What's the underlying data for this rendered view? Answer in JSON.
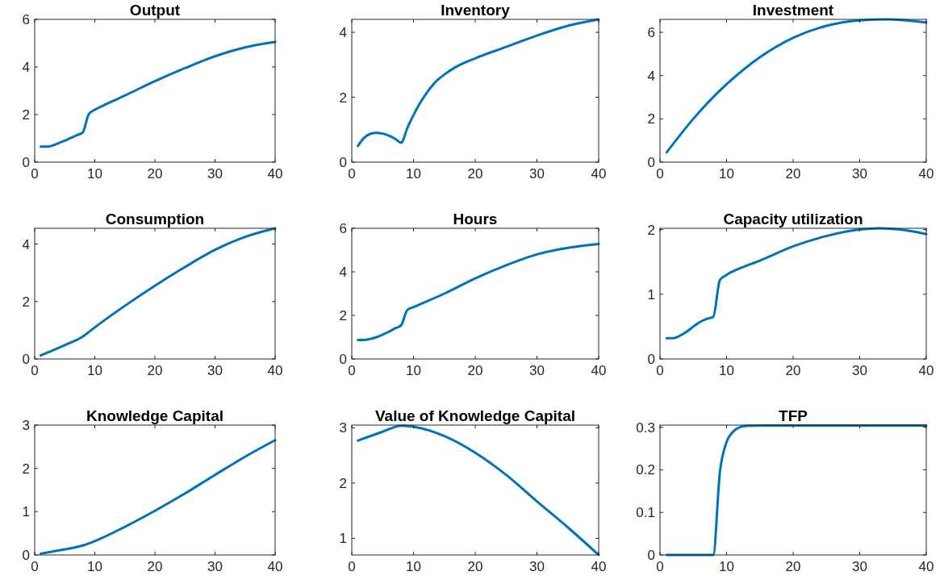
{
  "chart_data": [
    {
      "type": "line",
      "title": "Output",
      "x": [
        1,
        2,
        3,
        4,
        5,
        6,
        7,
        8,
        9,
        10,
        12,
        15,
        20,
        25,
        30,
        35,
        40
      ],
      "series": [
        {
          "color": "#0072bd",
          "values": [
            0.65,
            0.65,
            0.7,
            0.8,
            0.9,
            1.02,
            1.13,
            1.25,
            2.02,
            2.2,
            2.45,
            2.8,
            3.4,
            3.95,
            4.45,
            4.82,
            5.05
          ]
        }
      ],
      "xlim": [
        0,
        40
      ],
      "xticks": [
        0,
        10,
        20,
        30,
        40
      ],
      "ylim": [
        0,
        6
      ],
      "yticks": [
        0,
        2,
        4,
        6
      ]
    },
    {
      "type": "line",
      "title": "Inventory",
      "x": [
        1,
        2,
        3,
        4,
        5,
        6,
        7,
        8,
        9,
        10,
        11,
        12,
        13,
        14,
        15,
        17,
        20,
        25,
        30,
        35,
        40
      ],
      "series": [
        {
          "color": "#0072bd",
          "values": [
            0.5,
            0.75,
            0.87,
            0.9,
            0.88,
            0.82,
            0.72,
            0.6,
            1.05,
            1.45,
            1.8,
            2.1,
            2.35,
            2.55,
            2.7,
            2.95,
            3.2,
            3.55,
            3.9,
            4.2,
            4.4
          ]
        }
      ],
      "xlim": [
        0,
        40
      ],
      "xticks": [
        0,
        10,
        20,
        30,
        40
      ],
      "ylim": [
        0,
        4.4
      ],
      "yticks": [
        0,
        2,
        4
      ]
    },
    {
      "type": "line",
      "title": "Investment",
      "x": [
        1,
        5,
        10,
        15,
        20,
        25,
        30,
        34,
        37,
        40
      ],
      "series": [
        {
          "color": "#0072bd",
          "values": [
            0.45,
            2.0,
            3.6,
            4.85,
            5.75,
            6.3,
            6.55,
            6.6,
            6.55,
            6.45
          ]
        }
      ],
      "xlim": [
        0,
        40
      ],
      "xticks": [
        0,
        10,
        20,
        30,
        40
      ],
      "ylim": [
        0,
        6.6
      ],
      "yticks": [
        0,
        2,
        4,
        6
      ]
    },
    {
      "type": "line",
      "title": "Consumption",
      "x": [
        1,
        5,
        8,
        10,
        15,
        20,
        25,
        30,
        35,
        40
      ],
      "series": [
        {
          "color": "#0072bd",
          "values": [
            0.12,
            0.48,
            0.78,
            1.1,
            1.85,
            2.55,
            3.2,
            3.8,
            4.25,
            4.55
          ]
        }
      ],
      "xlim": [
        0,
        40
      ],
      "xticks": [
        0,
        10,
        20,
        30,
        40
      ],
      "ylim": [
        0,
        4.55
      ],
      "yticks": [
        0,
        2,
        4
      ]
    },
    {
      "type": "line",
      "title": "Hours",
      "x": [
        1,
        2,
        3,
        4,
        5,
        6,
        7,
        8,
        9,
        10,
        15,
        20,
        25,
        30,
        35,
        40
      ],
      "series": [
        {
          "color": "#0072bd",
          "values": [
            0.87,
            0.87,
            0.92,
            1.0,
            1.12,
            1.25,
            1.4,
            1.55,
            2.25,
            2.38,
            3.0,
            3.7,
            4.3,
            4.8,
            5.1,
            5.28
          ]
        }
      ],
      "xlim": [
        0,
        40
      ],
      "xticks": [
        0,
        10,
        20,
        30,
        40
      ],
      "ylim": [
        0,
        6
      ],
      "yticks": [
        0,
        2,
        4,
        6
      ]
    },
    {
      "type": "line",
      "title": "Capacity utilization",
      "x": [
        1,
        2,
        3,
        4,
        5,
        6,
        7,
        8,
        9,
        10,
        12,
        15,
        20,
        25,
        30,
        33,
        36,
        40
      ],
      "series": [
        {
          "color": "#0072bd",
          "values": [
            0.32,
            0.32,
            0.36,
            0.42,
            0.5,
            0.57,
            0.62,
            0.65,
            1.22,
            1.3,
            1.4,
            1.52,
            1.74,
            1.9,
            2.0,
            2.02,
            2.0,
            1.93
          ]
        }
      ],
      "xlim": [
        0,
        40
      ],
      "xticks": [
        0,
        10,
        20,
        30,
        40
      ],
      "ylim": [
        0,
        2.02
      ],
      "yticks": [
        0,
        1,
        2
      ]
    },
    {
      "type": "line",
      "title": "Knowledge Capital",
      "x": [
        1,
        5,
        8,
        10,
        15,
        20,
        25,
        30,
        35,
        40
      ],
      "series": [
        {
          "color": "#0072bd",
          "values": [
            0.03,
            0.13,
            0.22,
            0.32,
            0.65,
            1.02,
            1.42,
            1.85,
            2.27,
            2.65
          ]
        }
      ],
      "xlim": [
        0,
        40
      ],
      "xticks": [
        0,
        10,
        20,
        30,
        40
      ],
      "ylim": [
        0,
        3
      ],
      "yticks": [
        0,
        1,
        2,
        3
      ]
    },
    {
      "type": "line",
      "title": "Value of Knowledge Capital",
      "x": [
        1,
        5,
        8,
        10,
        15,
        20,
        25,
        30,
        35,
        40
      ],
      "series": [
        {
          "color": "#0072bd",
          "values": [
            2.77,
            2.93,
            3.04,
            3.02,
            2.85,
            2.55,
            2.15,
            1.67,
            1.2,
            0.7
          ]
        }
      ],
      "xlim": [
        0,
        40
      ],
      "xticks": [
        0,
        10,
        20,
        30,
        40
      ],
      "ylim": [
        0.7,
        3.05
      ],
      "yticks": [
        1,
        2,
        3
      ]
    },
    {
      "type": "line",
      "title": "TFP",
      "x": [
        1,
        2,
        3,
        4,
        5,
        6,
        7,
        8,
        9,
        10,
        11,
        12,
        13,
        15,
        20,
        30,
        40
      ],
      "series": [
        {
          "color": "#0072bd",
          "values": [
            0,
            0,
            0,
            0,
            0,
            0,
            0,
            0,
            0.195,
            0.265,
            0.29,
            0.3,
            0.303,
            0.304,
            0.304,
            0.304,
            0.304
          ]
        }
      ],
      "xlim": [
        0,
        40
      ],
      "xticks": [
        0,
        10,
        20,
        30,
        40
      ],
      "ylim": [
        0,
        0.305
      ],
      "yticks": [
        0,
        0.1,
        0.2,
        0.3
      ]
    }
  ]
}
